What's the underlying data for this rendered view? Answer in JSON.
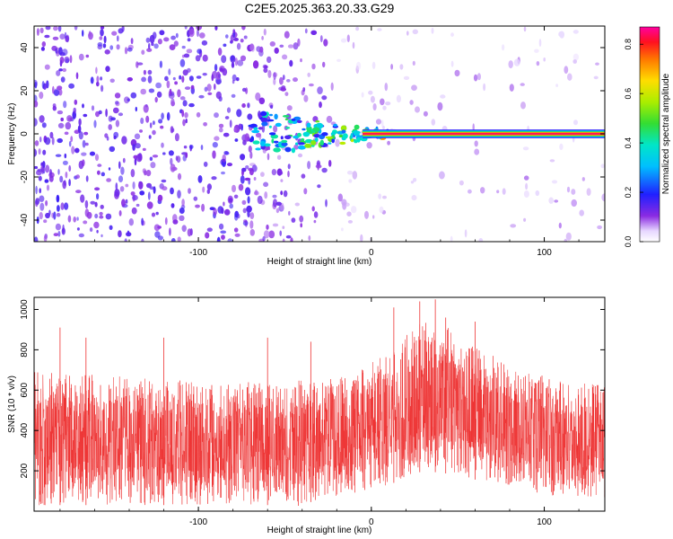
{
  "figure_title": "C2E5.2025.363.20.33.G29",
  "chart_data": [
    {
      "type": "heatmap",
      "title": "",
      "xlabel": "Height of straight line (km)",
      "ylabel": "Frequency (Hz)",
      "xlim": [
        -195,
        135
      ],
      "ylim": [
        -50,
        50
      ],
      "xticks": [
        -100,
        0,
        100
      ],
      "xtick_labels": [
        "-100",
        "0",
        "100"
      ],
      "yticks": [
        -40,
        -20,
        0,
        20,
        40
      ],
      "ytick_labels": [
        "-40",
        "-20",
        "0",
        "20",
        "40"
      ],
      "colorbar": {
        "label": "Normalized spectral amplitude",
        "range": [
          0.0,
          0.87
        ],
        "ticks": [
          0.0,
          0.2,
          0.4,
          0.6,
          0.8
        ],
        "tick_labels": [
          "0.0",
          "0.2",
          "0.4",
          "0.6",
          "0.8"
        ],
        "colormap": "rainbow: white(0) → violet → blue → cyan → green → yellow → orange → red → magenta(max)"
      },
      "features": {
        "carrier_line_frequency_hz": 0,
        "carrier_line_start_km": -5,
        "carrier_line_end_km": 135,
        "carrier_amplitude": 0.85,
        "transition_region_km": [
          -70,
          10
        ],
        "dense_noise_region_km": [
          -195,
          -20
        ],
        "noise_amplitude_range": [
          0.02,
          0.15
        ]
      }
    },
    {
      "type": "line",
      "title": "",
      "xlabel": "Height of straight line (km)",
      "ylabel": "SNR (10 * v/v)",
      "xlim": [
        -195,
        135
      ],
      "ylim": [
        0,
        1060
      ],
      "xticks": [
        -100,
        0,
        100
      ],
      "xtick_labels": [
        "-100",
        "0",
        "100"
      ],
      "yticks": [
        200,
        400,
        600,
        800,
        1000
      ],
      "ytick_labels": [
        "200",
        "400",
        "600",
        "800",
        "1000"
      ],
      "series_color": "#ee3333",
      "envelope": [
        {
          "x": -195,
          "low": 30,
          "high": 700
        },
        {
          "x": -150,
          "low": 30,
          "high": 680
        },
        {
          "x": -100,
          "low": 30,
          "high": 640
        },
        {
          "x": -50,
          "low": 30,
          "high": 640
        },
        {
          "x": -10,
          "low": 70,
          "high": 680
        },
        {
          "x": 10,
          "low": 130,
          "high": 800
        },
        {
          "x": 30,
          "low": 200,
          "high": 950
        },
        {
          "x": 50,
          "low": 180,
          "high": 880
        },
        {
          "x": 80,
          "low": 110,
          "high": 720
        },
        {
          "x": 110,
          "low": 70,
          "high": 650
        },
        {
          "x": 135,
          "low": 60,
          "high": 620
        }
      ],
      "peak_values": [
        {
          "x": 28,
          "y": 1040
        },
        {
          "x": 37,
          "y": 1050
        },
        {
          "x": 13,
          "y": 1010
        },
        {
          "x": 43,
          "y": 960
        },
        {
          "x": 60,
          "y": 940
        },
        {
          "x": -180,
          "y": 910
        },
        {
          "x": -165,
          "y": 860
        },
        {
          "x": -120,
          "y": 860
        },
        {
          "x": -60,
          "y": 860
        },
        {
          "x": -35,
          "y": 840
        }
      ]
    }
  ]
}
